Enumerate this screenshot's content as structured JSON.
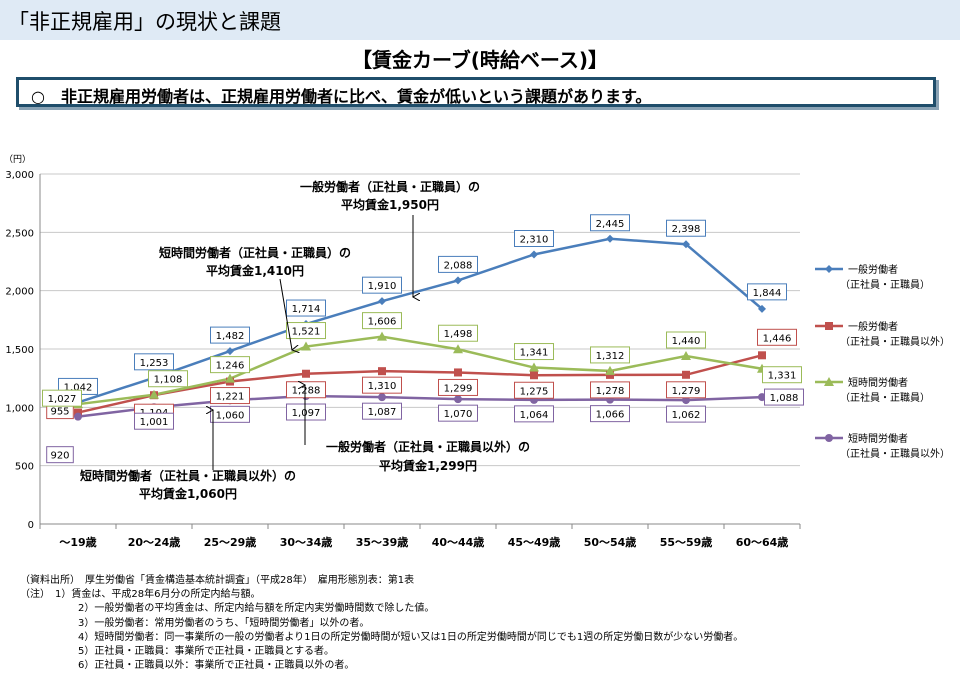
{
  "header": {
    "title": "「非正規雇用」の現状と課題"
  },
  "subtitle": "【賃金カーブ(時給ベース)】",
  "summary": "○　非正規雇用労働者は、正規雇用労働者に比べ、賃金が低いという課題があります。",
  "colors": {
    "blue": "#4a7ebb",
    "red": "#c0504d",
    "green": "#9bbb59",
    "purple": "#8064a2"
  },
  "chart_data": {
    "type": "line",
    "unit_label": "（円）",
    "ylim": [
      0,
      3000
    ],
    "y_ticks": [
      "0",
      "500",
      "1,000",
      "1,500",
      "2,000",
      "2,500",
      "3,000"
    ],
    "categories": [
      "～19歳",
      "20～24歳",
      "25～29歳",
      "30～34歳",
      "35～39歳",
      "40～44歳",
      "45～49歳",
      "50～54歳",
      "55～59歳",
      "60～64歳"
    ],
    "series": [
      {
        "name": "一般労働者",
        "name2": "（正社員・正職員）",
        "color": "#4a7ebb",
        "marker": "diamond",
        "values": [
          1042,
          1253,
          1482,
          1714,
          1910,
          2088,
          2310,
          2445,
          2398,
          1844
        ],
        "labels": [
          "1,042",
          "1,253",
          "1,482",
          "1,714",
          "1,910",
          "2,088",
          "2,310",
          "2,445",
          "2,398",
          "1,844"
        ]
      },
      {
        "name": "一般労働者",
        "name2": "（正社員・正職員以外）",
        "color": "#c0504d",
        "marker": "square",
        "values": [
          955,
          1104,
          1221,
          1288,
          1310,
          1299,
          1275,
          1278,
          1279,
          1446
        ],
        "labels": [
          "955",
          "1,104",
          "1,221",
          "1,288",
          "1,310",
          "1,299",
          "1,275",
          "1,278",
          "1,279",
          "1,446"
        ]
      },
      {
        "name": "短時間労働者",
        "name2": "（正社員・正職員）",
        "color": "#9bbb59",
        "marker": "triangle",
        "values": [
          1027,
          1108,
          1246,
          1521,
          1606,
          1498,
          1341,
          1312,
          1440,
          1331
        ],
        "labels": [
          "1,027",
          "1,108",
          "1,246",
          "1,521",
          "1,606",
          "1,498",
          "1,341",
          "1,312",
          "1,440",
          "1,331"
        ]
      },
      {
        "name": "短時間労働者",
        "name2": "（正社員・正職員以外）",
        "color": "#8064a2",
        "marker": "circle",
        "values": [
          920,
          1001,
          1060,
          1097,
          1087,
          1070,
          1064,
          1066,
          1062,
          1088
        ],
        "labels": [
          "920",
          "1,001",
          "1,060",
          "1,097",
          "1,087",
          "1,070",
          "1,064",
          "1,066",
          "1,062",
          "1,088"
        ]
      }
    ],
    "annotations": [
      {
        "line1": "一般労働者（正社員・正職員）の",
        "line2": "平均賃金1,950円"
      },
      {
        "line1": "短時間労働者（正社員・正職員）の",
        "line2": "平均賃金1,410円"
      },
      {
        "line1": "一般労働者（正社員・正職員以外）の",
        "line2": "平均賃金1,299円"
      },
      {
        "line1": "短時間労働者（正社員・正職員以外）の",
        "line2": "平均賃金1,060円"
      }
    ]
  },
  "footnotes": {
    "source": "（資料出所）　厚生労働省「賃金構造基本統計調査」（平成28年）　雇用形態別表：第1表",
    "notes": [
      "（注）　1）賃金は、平成28年6月分の所定内給与額。",
      "2）一般労働者の平均賃金は、所定内給与額を所定内実労働時間数で除した値。",
      "3）一般労働者：常用労働者のうち、「短時間労働者」以外の者。",
      "4）短時間労働者：同一事業所の一般の労働者より1日の所定労働時間が短い又は1日の所定労働時間が同じでも1週の所定労働日数が少ない労働者。",
      "5）正社員・正職員：事業所で正社員・正職員とする者。",
      "6）正社員・正職員以外：事業所で正社員・正職員以外の者。"
    ]
  }
}
